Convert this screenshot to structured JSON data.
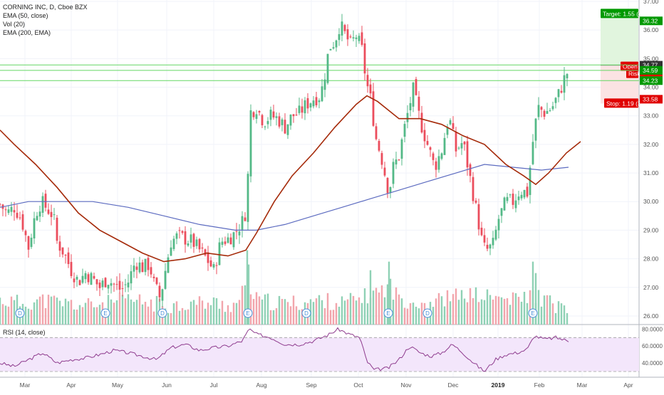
{
  "header": {
    "symbol_line": "CORNING INC, D, Cboe BZX",
    "indicators": [
      "EMA (50, close)",
      "Vol (20)",
      "EMA (200, EMA)"
    ]
  },
  "rsi_panel": {
    "label": "RSI (14, close)",
    "levels": [
      80,
      70,
      60,
      40,
      30
    ],
    "tick_labels": [
      "80.0000",
      "60.0000",
      "40.0000"
    ]
  },
  "colors": {
    "up": "#53b987",
    "down": "#eb4d5c",
    "vol_up": "#8fd1b5",
    "vol_down": "#f2a5ac",
    "ema50": "#a52a0a",
    "ema200": "#5c6bc0",
    "rsi_line": "#8e3b8e",
    "rsi_band": "#f3e6fb",
    "hline": "#63d763",
    "target": "#009900",
    "stop": "#e00000"
  },
  "chart_data": {
    "type": "candlestick",
    "title": "CORNING INC, D, Cboe BZX",
    "ylim": [
      25.7,
      37.05
    ],
    "y_ticks": [
      26.0,
      27.0,
      28.0,
      29.0,
      30.0,
      31.0,
      32.0,
      33.0,
      34.0,
      35.0,
      36.0,
      37.0
    ],
    "x_labels": [
      "Mar",
      "Apr",
      "May",
      "Jun",
      "Jul",
      "Aug",
      "Sep",
      "Oct",
      "Nov",
      "Dec",
      "2019",
      "Feb",
      "Mar",
      "Apr"
    ],
    "price_path": [
      [
        0,
        29.9
      ],
      [
        10,
        29.6
      ],
      [
        20,
        29.8
      ],
      [
        30,
        29.4
      ],
      [
        40,
        28.4
      ],
      [
        50,
        29.6
      ],
      [
        58,
        30.0
      ],
      [
        68,
        29.7
      ],
      [
        75,
        29.5
      ],
      [
        80,
        28.6
      ],
      [
        90,
        28.2
      ],
      [
        100,
        27.6
      ],
      [
        110,
        27.2
      ],
      [
        120,
        27.5
      ],
      [
        130,
        27.3
      ],
      [
        140,
        27.0
      ],
      [
        150,
        27.3
      ],
      [
        160,
        27.1
      ],
      [
        170,
        26.9
      ],
      [
        180,
        27.2
      ],
      [
        190,
        27.9
      ],
      [
        200,
        27.7
      ],
      [
        210,
        27.8
      ],
      [
        215,
        27.2
      ],
      [
        225,
        26.6
      ],
      [
        232,
        27.6
      ],
      [
        240,
        28.6
      ],
      [
        250,
        28.8
      ],
      [
        260,
        28.7
      ],
      [
        270,
        28.6
      ],
      [
        280,
        28.3
      ],
      [
        290,
        28.0
      ],
      [
        300,
        27.6
      ],
      [
        310,
        28.6
      ],
      [
        320,
        28.7
      ],
      [
        330,
        28.9
      ],
      [
        340,
        29.3
      ],
      [
        347,
        29.8
      ],
      [
        350,
        33.1
      ],
      [
        360,
        33.3
      ],
      [
        370,
        32.8
      ],
      [
        380,
        33.0
      ],
      [
        390,
        32.9
      ],
      [
        400,
        32.6
      ],
      [
        410,
        33.0
      ],
      [
        420,
        33.1
      ],
      [
        430,
        33.4
      ],
      [
        440,
        33.6
      ],
      [
        450,
        33.7
      ],
      [
        457,
        34.6
      ],
      [
        462,
        35.4
      ],
      [
        470,
        35.6
      ],
      [
        477,
        36.2
      ],
      [
        485,
        35.8
      ],
      [
        492,
        35.5
      ],
      [
        500,
        35.8
      ],
      [
        508,
        35.3
      ],
      [
        514,
        34.2
      ],
      [
        520,
        33.6
      ],
      [
        528,
        32.2
      ],
      [
        535,
        31.6
      ],
      [
        540,
        31.0
      ],
      [
        546,
        30.3
      ],
      [
        552,
        31.2
      ],
      [
        560,
        31.6
      ],
      [
        568,
        32.6
      ],
      [
        575,
        33.4
      ],
      [
        580,
        33.9
      ],
      [
        590,
        32.8
      ],
      [
        600,
        32.0
      ],
      [
        610,
        31.2
      ],
      [
        620,
        31.8
      ],
      [
        630,
        33.0
      ],
      [
        640,
        31.8
      ],
      [
        650,
        32.1
      ],
      [
        660,
        30.8
      ],
      [
        670,
        29.5
      ],
      [
        678,
        28.4
      ],
      [
        685,
        28.3
      ],
      [
        692,
        28.5
      ],
      [
        700,
        29.4
      ],
      [
        710,
        30.0
      ],
      [
        720,
        30.0
      ],
      [
        730,
        30.4
      ],
      [
        740,
        30.3
      ],
      [
        748,
        32.1
      ],
      [
        755,
        33.3
      ],
      [
        765,
        33.1
      ],
      [
        775,
        33.3
      ],
      [
        785,
        33.8
      ],
      [
        795,
        34.5
      ]
    ],
    "volume_path": [
      [
        0,
        26.6
      ],
      [
        30,
        26.5
      ],
      [
        60,
        26.6
      ],
      [
        90,
        26.5
      ],
      [
        120,
        26.4
      ],
      [
        150,
        26.5
      ],
      [
        180,
        26.6
      ],
      [
        210,
        26.5
      ],
      [
        240,
        26.4
      ],
      [
        270,
        26.5
      ],
      [
        300,
        26.5
      ],
      [
        330,
        26.4
      ],
      [
        348,
        27.2
      ],
      [
        360,
        26.6
      ],
      [
        390,
        26.5
      ],
      [
        420,
        26.5
      ],
      [
        450,
        26.6
      ],
      [
        480,
        26.5
      ],
      [
        510,
        26.7
      ],
      [
        540,
        27.0
      ],
      [
        570,
        26.6
      ],
      [
        600,
        26.5
      ],
      [
        630,
        26.7
      ],
      [
        660,
        26.8
      ],
      [
        690,
        26.7
      ],
      [
        720,
        26.6
      ],
      [
        750,
        26.8
      ],
      [
        780,
        26.4
      ],
      [
        798,
        26.2
      ]
    ],
    "volume_spikes": [
      {
        "x": 347,
        "v": 28.3
      },
      {
        "x": 349,
        "v": 27.8
      },
      {
        "x": 520,
        "v": 27.6
      },
      {
        "x": 546,
        "v": 27.9
      },
      {
        "x": 548,
        "v": 27.3
      },
      {
        "x": 748,
        "v": 27.9
      },
      {
        "x": 752,
        "v": 27.5
      }
    ],
    "ema50": [
      [
        0,
        32.5
      ],
      [
        20,
        32.0
      ],
      [
        50,
        31.3
      ],
      [
        80,
        30.5
      ],
      [
        110,
        29.6
      ],
      [
        140,
        29.0
      ],
      [
        170,
        28.6
      ],
      [
        200,
        28.2
      ],
      [
        230,
        27.9
      ],
      [
        260,
        28.0
      ],
      [
        290,
        28.2
      ],
      [
        320,
        28.1
      ],
      [
        345,
        28.3
      ],
      [
        360,
        28.9
      ],
      [
        385,
        30.0
      ],
      [
        410,
        30.9
      ],
      [
        440,
        31.7
      ],
      [
        470,
        32.6
      ],
      [
        500,
        33.4
      ],
      [
        515,
        33.7
      ],
      [
        530,
        33.5
      ],
      [
        560,
        32.9
      ],
      [
        590,
        32.9
      ],
      [
        620,
        32.7
      ],
      [
        650,
        32.3
      ],
      [
        680,
        32.0
      ],
      [
        710,
        31.3
      ],
      [
        735,
        30.9
      ],
      [
        752,
        30.6
      ],
      [
        770,
        31.0
      ],
      [
        795,
        31.7
      ],
      [
        815,
        32.1
      ]
    ],
    "ema200": [
      [
        0,
        29.8
      ],
      [
        40,
        30.0
      ],
      [
        80,
        30.0
      ],
      [
        130,
        30.0
      ],
      [
        180,
        29.8
      ],
      [
        230,
        29.5
      ],
      [
        280,
        29.2
      ],
      [
        330,
        29.0
      ],
      [
        360,
        29.0
      ],
      [
        400,
        29.2
      ],
      [
        440,
        29.5
      ],
      [
        480,
        29.8
      ],
      [
        520,
        30.1
      ],
      [
        560,
        30.4
      ],
      [
        600,
        30.7
      ],
      [
        640,
        31.0
      ],
      [
        680,
        31.3
      ],
      [
        720,
        31.2
      ],
      [
        760,
        31.1
      ],
      [
        798,
        31.2
      ]
    ],
    "rsi": [
      [
        0,
        40
      ],
      [
        20,
        36
      ],
      [
        40,
        44
      ],
      [
        60,
        52
      ],
      [
        80,
        40
      ],
      [
        100,
        44
      ],
      [
        120,
        46
      ],
      [
        140,
        50
      ],
      [
        160,
        55
      ],
      [
        180,
        52
      ],
      [
        200,
        48
      ],
      [
        220,
        44
      ],
      [
        240,
        58
      ],
      [
        260,
        62
      ],
      [
        280,
        55
      ],
      [
        300,
        58
      ],
      [
        320,
        60
      ],
      [
        340,
        66
      ],
      [
        350,
        80
      ],
      [
        360,
        74
      ],
      [
        380,
        70
      ],
      [
        400,
        62
      ],
      [
        420,
        62
      ],
      [
        440,
        66
      ],
      [
        460,
        73
      ],
      [
        475,
        80
      ],
      [
        490,
        74
      ],
      [
        505,
        70
      ],
      [
        515,
        42
      ],
      [
        525,
        32
      ],
      [
        545,
        34
      ],
      [
        560,
        44
      ],
      [
        575,
        60
      ],
      [
        590,
        52
      ],
      [
        605,
        48
      ],
      [
        620,
        52
      ],
      [
        635,
        62
      ],
      [
        650,
        52
      ],
      [
        665,
        40
      ],
      [
        680,
        30
      ],
      [
        695,
        44
      ],
      [
        710,
        50
      ],
      [
        725,
        52
      ],
      [
        740,
        56
      ],
      [
        750,
        72
      ],
      [
        765,
        68
      ],
      [
        780,
        70
      ],
      [
        798,
        66
      ]
    ],
    "horizontal_levels": [
      34.78,
      34.59,
      34.23
    ],
    "event_markers": [
      {
        "x": 28,
        "label": "D"
      },
      {
        "x": 148,
        "label": "E"
      },
      {
        "x": 228,
        "label": "D"
      },
      {
        "x": 348,
        "label": "E"
      },
      {
        "x": 430,
        "label": "D"
      },
      {
        "x": 545,
        "label": "E"
      },
      {
        "x": 600,
        "label": "D"
      },
      {
        "x": 748,
        "label": "E"
      }
    ],
    "position": {
      "target_label": "Target: 1.55 (4",
      "open_label": "Open P",
      "risk_label": "Risk/",
      "stop_label": "Stop: 1.19 (3",
      "target": 36.32,
      "entry": 34.77,
      "stop": 33.58
    },
    "axis_tags": [
      {
        "value": 36.32,
        "label": "36.32",
        "color": "#009900"
      },
      {
        "value": 34.77,
        "label": "34.77",
        "color": "#333333"
      },
      {
        "value": 34.75,
        "label": "34.75",
        "color": "#e00000"
      },
      {
        "value": 34.59,
        "label": "34.59",
        "color": "#009900"
      },
      {
        "value": 34.23,
        "label": "34.23",
        "color": "#009900"
      },
      {
        "value": 33.58,
        "label": "33.58",
        "color": "#e00000"
      }
    ],
    "grid": true
  }
}
